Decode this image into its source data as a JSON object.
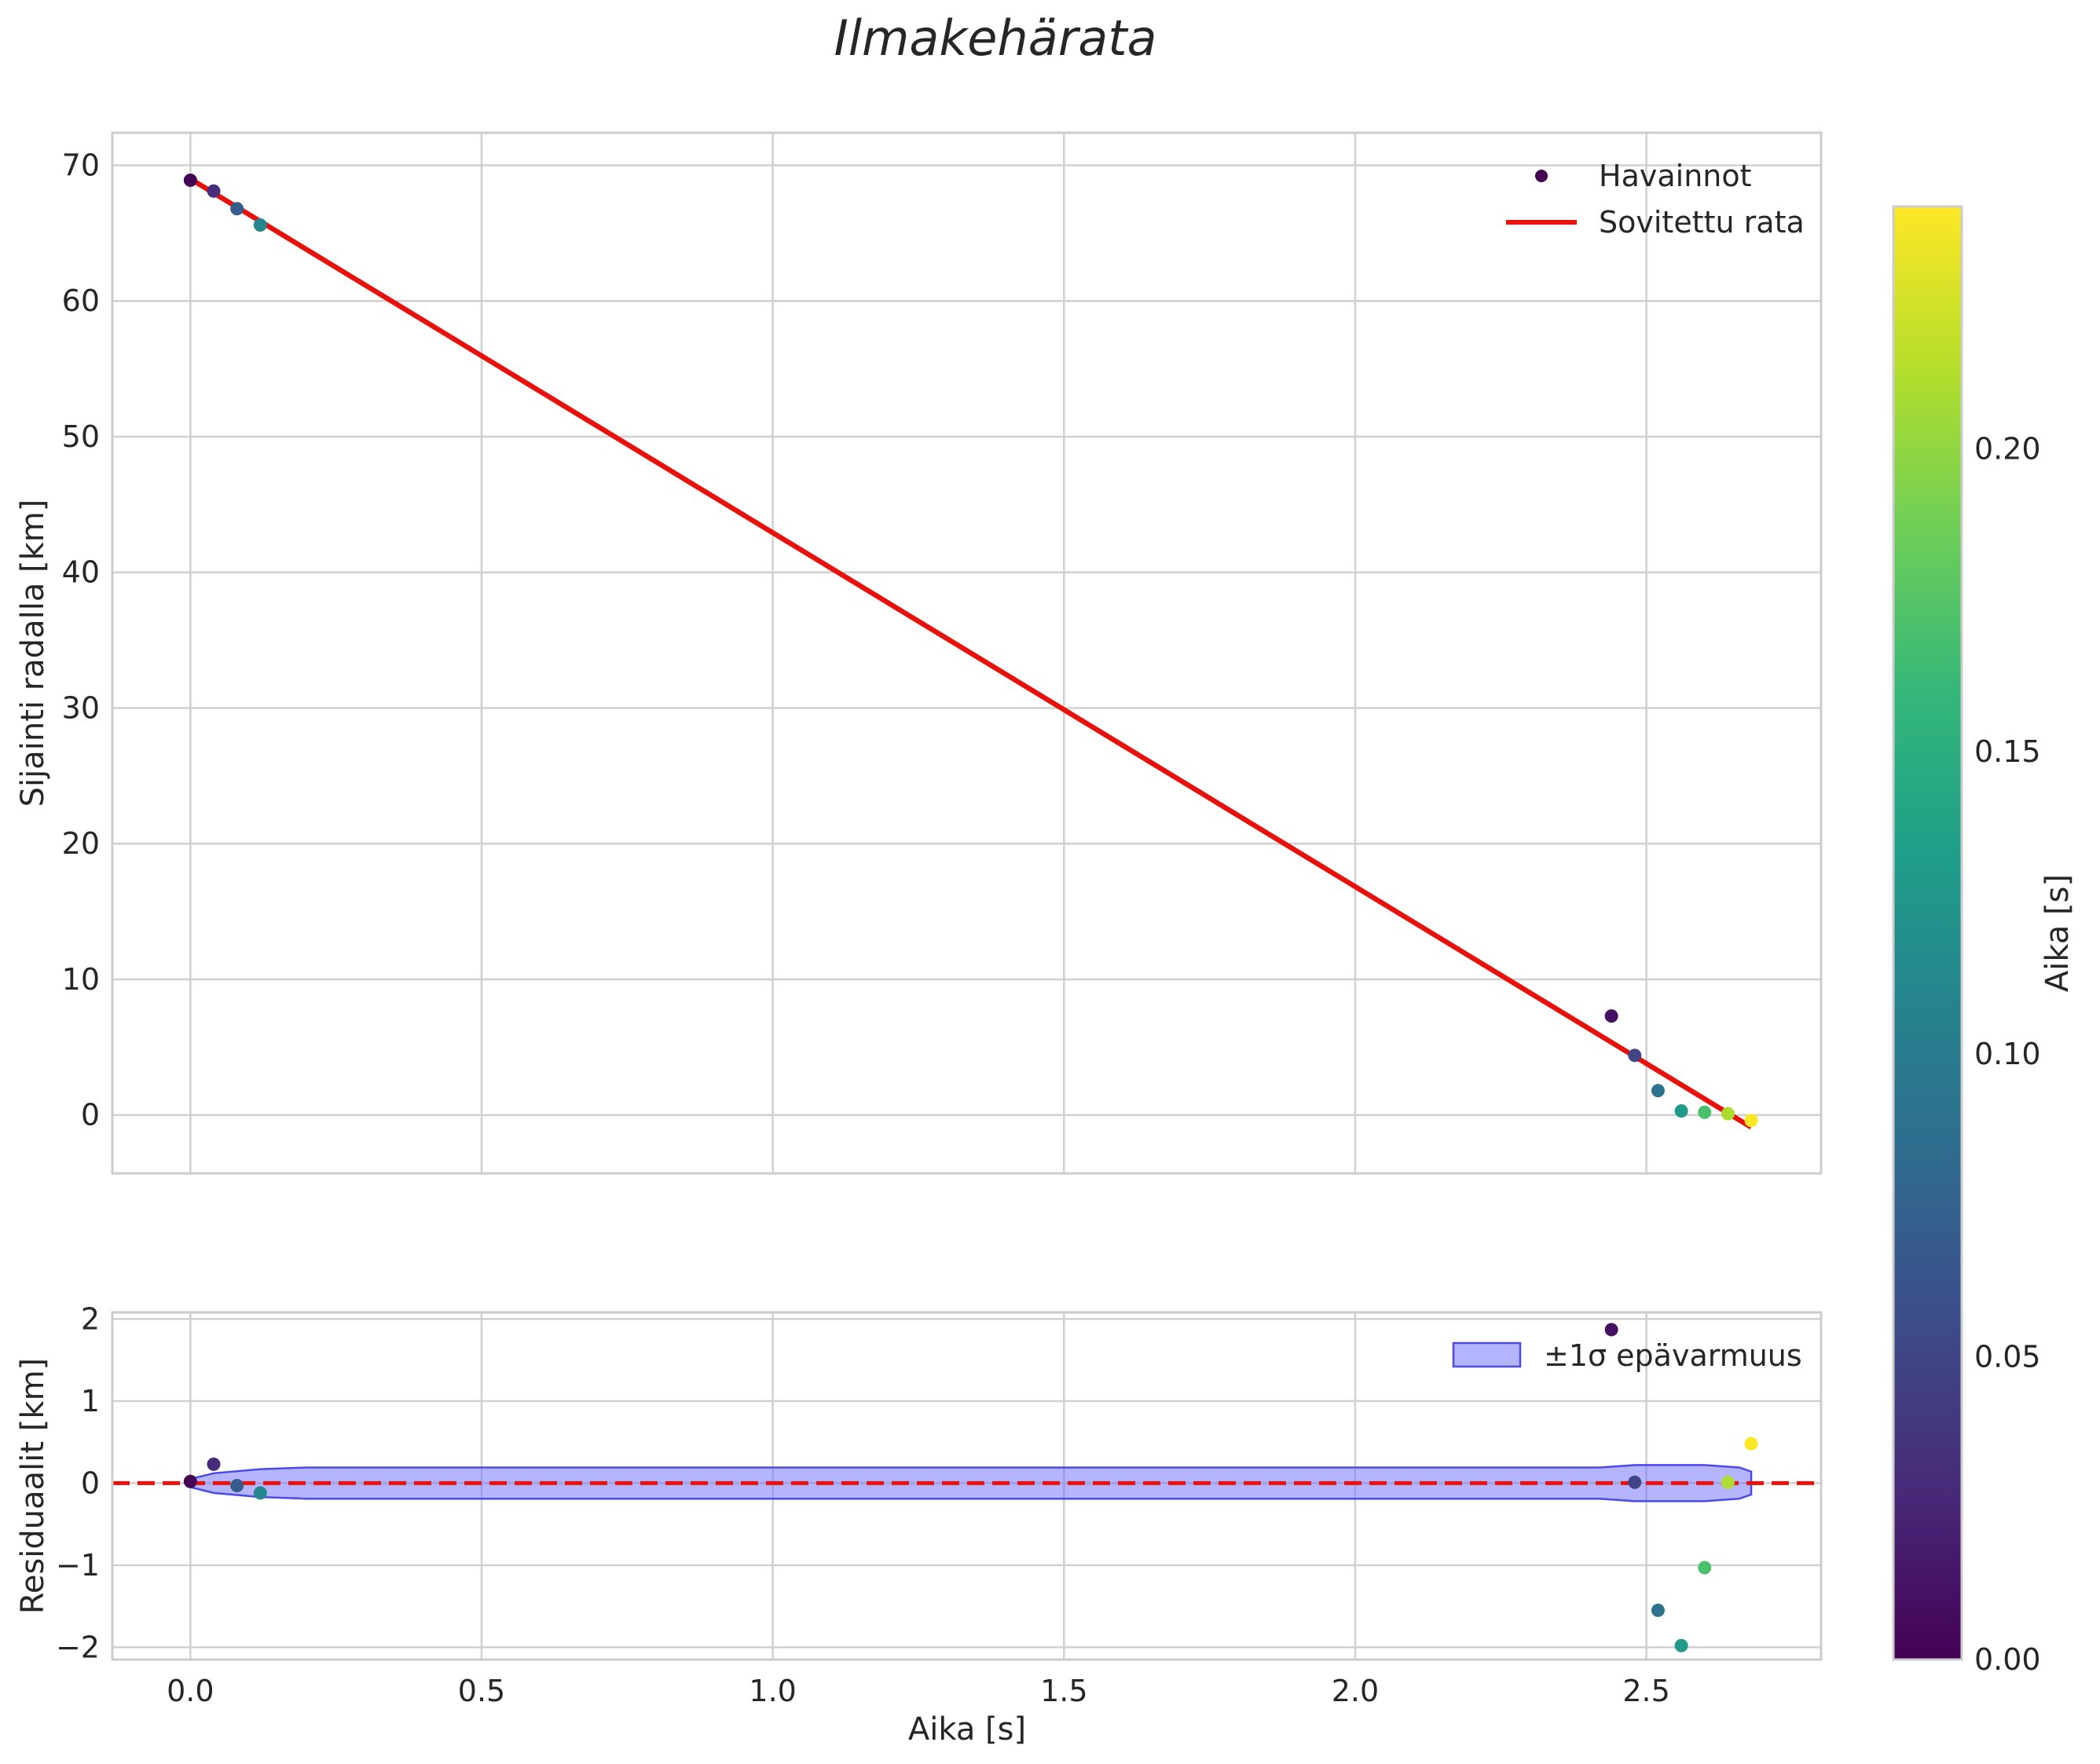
{
  "title": "Ilmakehärata",
  "colors": {
    "fit_line": "#e8120c",
    "zero_line": "#e8120c",
    "band_fill": "#6b6bff",
    "band_edge": "#4a4ae8",
    "grid": "#d0d0d0",
    "frame": "#cccccc",
    "viridis": [
      "#440154",
      "#482878",
      "#3e4989",
      "#31688e",
      "#26828e",
      "#1f9e89",
      "#35b779",
      "#6ece58",
      "#b5de2b",
      "#fde725"
    ]
  },
  "chart_data": [
    {
      "id": "top",
      "type": "scatter+line",
      "xlabel": "",
      "ylabel": "Sijainti radalla [km]",
      "xlim": [
        -0.134,
        2.8
      ],
      "ylim": [
        -4.3,
        72.4
      ],
      "xticks": [
        0.0,
        0.5,
        1.0,
        1.5,
        2.0,
        2.5
      ],
      "yticks": [
        0,
        10,
        20,
        30,
        40,
        50,
        60,
        70
      ],
      "ytick_labels": [
        "0",
        "10",
        "20",
        "30",
        "40",
        "50",
        "60",
        "70"
      ],
      "grid": true,
      "legend": {
        "position": "top-right",
        "entries": [
          "Havainnot",
          "Sovitettu rata"
        ]
      },
      "series": [
        {
          "name": "Havainnot",
          "kind": "scatter",
          "colored_by": "Aika [s]",
          "points": [
            {
              "x": 0.0,
              "y": 68.9,
              "c": 0.0
            },
            {
              "x": 0.04,
              "y": 68.1,
              "c": 0.03
            },
            {
              "x": 0.08,
              "y": 66.8,
              "c": 0.07
            },
            {
              "x": 0.12,
              "y": 65.6,
              "c": 0.11
            },
            {
              "x": 2.44,
              "y": 7.3,
              "c": 0.01
            },
            {
              "x": 2.48,
              "y": 4.4,
              "c": 0.05
            },
            {
              "x": 2.52,
              "y": 1.8,
              "c": 0.09
            },
            {
              "x": 2.56,
              "y": 0.3,
              "c": 0.13
            },
            {
              "x": 2.6,
              "y": 0.2,
              "c": 0.17
            },
            {
              "x": 2.64,
              "y": 0.1,
              "c": 0.21
            },
            {
              "x": 2.68,
              "y": -0.4,
              "c": 0.24
            }
          ]
        },
        {
          "name": "Sovitettu rata",
          "kind": "line",
          "x": [
            0.0,
            2.68
          ],
          "y": [
            69.0,
            -0.9
          ]
        }
      ]
    },
    {
      "id": "bottom",
      "type": "scatter+band",
      "xlabel": "Aika [s]",
      "ylabel": "Residuaalit [km]",
      "xlim": [
        -0.134,
        2.8
      ],
      "ylim": [
        -2.15,
        2.08
      ],
      "xticks": [
        0.0,
        0.5,
        1.0,
        1.5,
        2.0,
        2.5
      ],
      "xtick_labels": [
        "0.0",
        "0.5",
        "1.0",
        "1.5",
        "2.0",
        "2.5"
      ],
      "yticks": [
        -2,
        -1,
        0,
        1,
        2
      ],
      "ytick_labels": [
        "−2",
        "−1",
        "0",
        "1",
        "2"
      ],
      "grid": true,
      "legend": {
        "position": "top-right",
        "entries": [
          "±1σ epävarmuus"
        ]
      },
      "zero_line": 0,
      "band": {
        "name": "±1σ epävarmuus",
        "x": [
          0.0,
          0.04,
          0.12,
          0.2,
          2.42,
          2.48,
          2.6,
          2.66,
          2.68
        ],
        "upper": [
          0.05,
          0.12,
          0.17,
          0.19,
          0.19,
          0.22,
          0.22,
          0.19,
          0.14
        ],
        "lower": [
          -0.05,
          -0.12,
          -0.17,
          -0.19,
          -0.19,
          -0.22,
          -0.22,
          -0.19,
          -0.14
        ]
      },
      "points": [
        {
          "x": 0.0,
          "y": 0.02,
          "c": 0.0
        },
        {
          "x": 0.04,
          "y": 0.23,
          "c": 0.03
        },
        {
          "x": 0.08,
          "y": -0.03,
          "c": 0.07
        },
        {
          "x": 0.12,
          "y": -0.12,
          "c": 0.11
        },
        {
          "x": 2.44,
          "y": 1.87,
          "c": 0.01
        },
        {
          "x": 2.48,
          "y": 0.01,
          "c": 0.05
        },
        {
          "x": 2.52,
          "y": -1.55,
          "c": 0.09
        },
        {
          "x": 2.56,
          "y": -1.98,
          "c": 0.13
        },
        {
          "x": 2.6,
          "y": -1.03,
          "c": 0.17
        },
        {
          "x": 2.64,
          "y": 0.01,
          "c": 0.21
        },
        {
          "x": 2.68,
          "y": 0.48,
          "c": 0.24
        }
      ]
    },
    {
      "id": "colorbar",
      "type": "colorbar",
      "label": "Aika [s]",
      "range": [
        0.0,
        0.24
      ],
      "ticks": [
        0.0,
        0.05,
        0.1,
        0.15,
        0.2
      ],
      "tick_labels": [
        "0.00",
        "0.05",
        "0.10",
        "0.15",
        "0.20"
      ]
    }
  ]
}
